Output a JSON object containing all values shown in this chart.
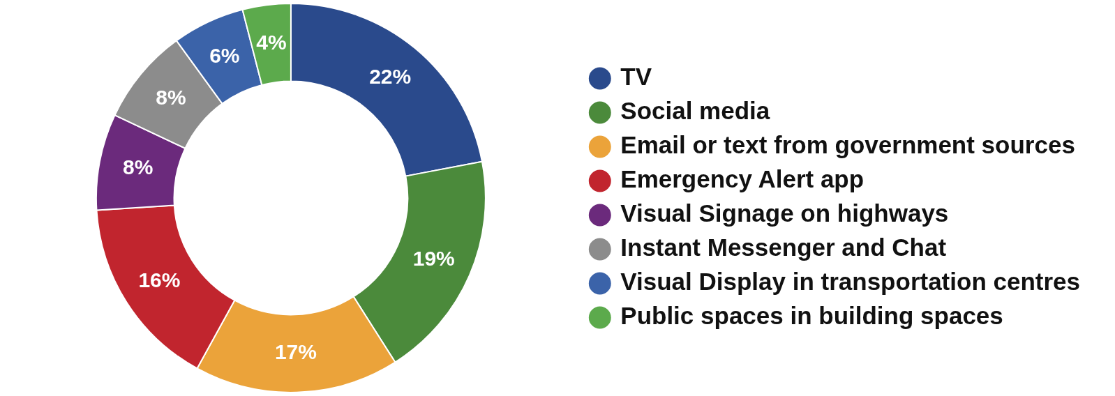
{
  "chart_data": {
    "type": "donut",
    "categories": [
      "TV",
      "Social media",
      "Email or text from government sources",
      "Emergency Alert app",
      "Visual Signage on highways",
      "Instant Messenger and Chat",
      "Visual Display in transportation centres",
      "Public spaces in building spaces"
    ],
    "values": [
      22,
      19,
      17,
      16,
      8,
      8,
      6,
      4
    ],
    "value_labels": [
      "22%",
      "19%",
      "17%",
      "16%",
      "8%",
      "8%",
      "6%",
      "4%"
    ],
    "colors": [
      "#2a4a8c",
      "#4b8a3b",
      "#eba33a",
      "#c1252e",
      "#6b2a7c",
      "#8c8c8c",
      "#3b63a9",
      "#5caa4c"
    ],
    "legend": "right"
  }
}
